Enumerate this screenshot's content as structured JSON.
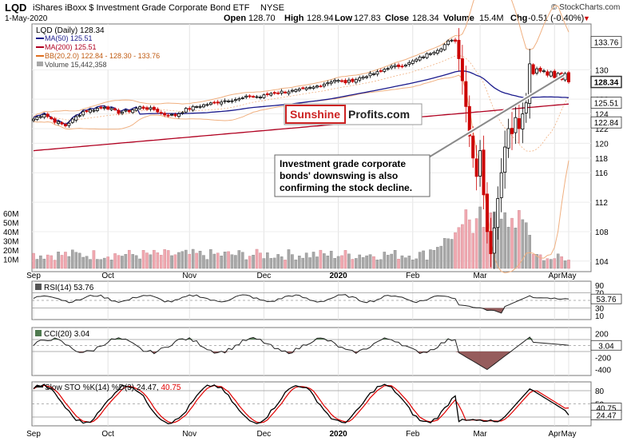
{
  "header": {
    "symbol": "LQD",
    "name": "iShares iBoxx $ Investment Grade Corporate Bond ETF",
    "exchange": "NYSE",
    "date": "1-May-2020",
    "credit": "© StockCharts.com",
    "open_label": "Open",
    "open": "128.70",
    "high_label": "High",
    "high": "128.94",
    "low_label": "Low",
    "low": "127.83",
    "close_label": "Close",
    "close": "128.34",
    "volume_label": "Volume",
    "volume": "15.4M",
    "chg_label": "Chg",
    "chg": "-0.51 (-0.40%)",
    "chg_arrow": "▼"
  },
  "colors": {
    "up_candle": "#000000",
    "down_candle": "#cc0000",
    "ma50": "#1a1a8c",
    "ma200": "#b00020",
    "bollinger": "#f0b080",
    "volume_up": "#a8a8a8",
    "volume_down": "#f0a8b0",
    "cci_positive_fill": "#4f7a4f",
    "rsi_cci_negative_fill": "#8a4a4a",
    "stoch_k": "#000000",
    "stoch_d": "#e00000"
  },
  "legend": {
    "main": "LQD (Daily) 128.34",
    "ma50": "MA(50) 125.51",
    "ma200": "MA(200) 125.51",
    "bb": "BB(20,2.0) 122.84 - 128.30 - 133.76",
    "volume": "Volume 15,442,358"
  },
  "watermark": {
    "part1": "Sunshine",
    "part2": "Profits.com"
  },
  "annotation": {
    "line1": "Investment grade corporate",
    "line2": "bonds' downswing is also",
    "line3": "confirming the stock decline."
  },
  "chart_data": [
    {
      "type": "candlestick",
      "title": "LQD (Daily) 128.34",
      "x_labels": [
        "Sep",
        "Oct",
        "Nov",
        "Dec",
        "2020",
        "Feb",
        "Mar",
        "Apr",
        "May"
      ],
      "y_ticks": [
        104,
        108,
        112,
        116,
        118,
        120,
        122,
        124,
        126,
        130
      ],
      "ylim": [
        103,
        136
      ],
      "y_badges": [
        {
          "value": "133.76",
          "y": 133.76,
          "style": "outline"
        },
        {
          "value": "128.34",
          "y": 128.34,
          "style": "filled"
        },
        {
          "value": "125.51",
          "y": 125.51,
          "style": "outline"
        },
        {
          "value": "122.84",
          "y": 122.84,
          "style": "outline"
        }
      ],
      "close_series": [
        {
          "x": 0,
          "y": 123.3
        },
        {
          "x": 3,
          "y": 124.0
        },
        {
          "x": 6,
          "y": 123.0
        },
        {
          "x": 9,
          "y": 122.4
        },
        {
          "x": 11,
          "y": 123.2
        },
        {
          "x": 14,
          "y": 124.3
        },
        {
          "x": 17,
          "y": 124.6
        },
        {
          "x": 20,
          "y": 125.0
        },
        {
          "x": 24,
          "y": 124.2
        },
        {
          "x": 27,
          "y": 124.4
        },
        {
          "x": 30,
          "y": 124.9
        },
        {
          "x": 34,
          "y": 124.6
        },
        {
          "x": 37,
          "y": 123.9
        },
        {
          "x": 40,
          "y": 123.8
        },
        {
          "x": 43,
          "y": 124.6
        },
        {
          "x": 46,
          "y": 125.0
        },
        {
          "x": 49,
          "y": 125.3
        },
        {
          "x": 52,
          "y": 125.6
        },
        {
          "x": 55,
          "y": 125.9
        },
        {
          "x": 58,
          "y": 126.0
        },
        {
          "x": 61,
          "y": 126.4
        },
        {
          "x": 64,
          "y": 126.3
        },
        {
          "x": 67,
          "y": 126.8
        },
        {
          "x": 70,
          "y": 127.0
        },
        {
          "x": 73,
          "y": 127.1
        },
        {
          "x": 76,
          "y": 127.3
        },
        {
          "x": 79,
          "y": 127.6
        },
        {
          "x": 82,
          "y": 128.1
        },
        {
          "x": 85,
          "y": 128.6
        },
        {
          "x": 88,
          "y": 128.3
        },
        {
          "x": 91,
          "y": 128.7
        },
        {
          "x": 94,
          "y": 129.2
        },
        {
          "x": 97,
          "y": 129.6
        },
        {
          "x": 100,
          "y": 130.3
        },
        {
          "x": 103,
          "y": 130.5
        },
        {
          "x": 106,
          "y": 130.9
        },
        {
          "x": 109,
          "y": 131.6
        },
        {
          "x": 112,
          "y": 132.3
        },
        {
          "x": 115,
          "y": 133.0
        },
        {
          "x": 117,
          "y": 133.8
        },
        {
          "x": 119,
          "y": 134.0
        },
        {
          "x": 120,
          "y": 131.5
        },
        {
          "x": 121,
          "y": 128.5
        },
        {
          "x": 122,
          "y": 125.0
        },
        {
          "x": 123,
          "y": 121.0
        },
        {
          "x": 124,
          "y": 118.0
        },
        {
          "x": 125,
          "y": 115.5
        },
        {
          "x": 126,
          "y": 119.0
        },
        {
          "x": 127,
          "y": 113.0
        },
        {
          "x": 128,
          "y": 108.0
        },
        {
          "x": 129,
          "y": 105.0
        },
        {
          "x": 130,
          "y": 108.5
        },
        {
          "x": 131,
          "y": 112.5
        },
        {
          "x": 132,
          "y": 116.0
        },
        {
          "x": 133,
          "y": 119.5
        },
        {
          "x": 134,
          "y": 122.0
        },
        {
          "x": 135,
          "y": 121.3
        },
        {
          "x": 136,
          "y": 123.5
        },
        {
          "x": 137,
          "y": 122.0
        },
        {
          "x": 138,
          "y": 124.0
        },
        {
          "x": 139,
          "y": 125.5
        },
        {
          "x": 140,
          "y": 130.8
        },
        {
          "x": 141,
          "y": 129.6
        },
        {
          "x": 142,
          "y": 130.2
        },
        {
          "x": 143,
          "y": 129.8
        },
        {
          "x": 144,
          "y": 130.0
        },
        {
          "x": 145,
          "y": 129.3
        },
        {
          "x": 146,
          "y": 129.8
        },
        {
          "x": 147,
          "y": 129.0
        },
        {
          "x": 148,
          "y": 129.4
        },
        {
          "x": 149,
          "y": 128.8
        },
        {
          "x": 150,
          "y": 129.6
        },
        {
          "x": 151,
          "y": 128.34
        }
      ]
    },
    {
      "type": "bar",
      "title": "Volume",
      "y_ticks": [
        "10M",
        "20M",
        "30M",
        "40M",
        "50M",
        "60M"
      ],
      "note": "daily volume bars, elevated during March 2020 sell-off"
    },
    {
      "type": "line",
      "title": "RSI(14) 53.76",
      "value": "53.76",
      "y_ticks": [
        "90",
        "70",
        "50",
        "30",
        "10"
      ],
      "ylim": [
        0,
        100
      ]
    },
    {
      "type": "line",
      "title": "CCI(20) 3.04",
      "value": "3.04",
      "y_ticks": [
        "200",
        "0",
        "-200",
        "-400"
      ],
      "ylim": [
        -500,
        300
      ]
    },
    {
      "type": "line",
      "title": "Slow STO %K(14) %D(3) 24.47, 40.75",
      "title_prefix": "Slow STO %K(14) %D(3)",
      "k_value": "24.47",
      "d_value": "40.75",
      "y_ticks": [
        "80",
        "50",
        "20"
      ],
      "ylim": [
        0,
        100
      ],
      "x_labels": [
        "Sep",
        "Oct",
        "Nov",
        "Dec",
        "2020",
        "Feb",
        "Mar",
        "Apr",
        "May"
      ]
    }
  ]
}
